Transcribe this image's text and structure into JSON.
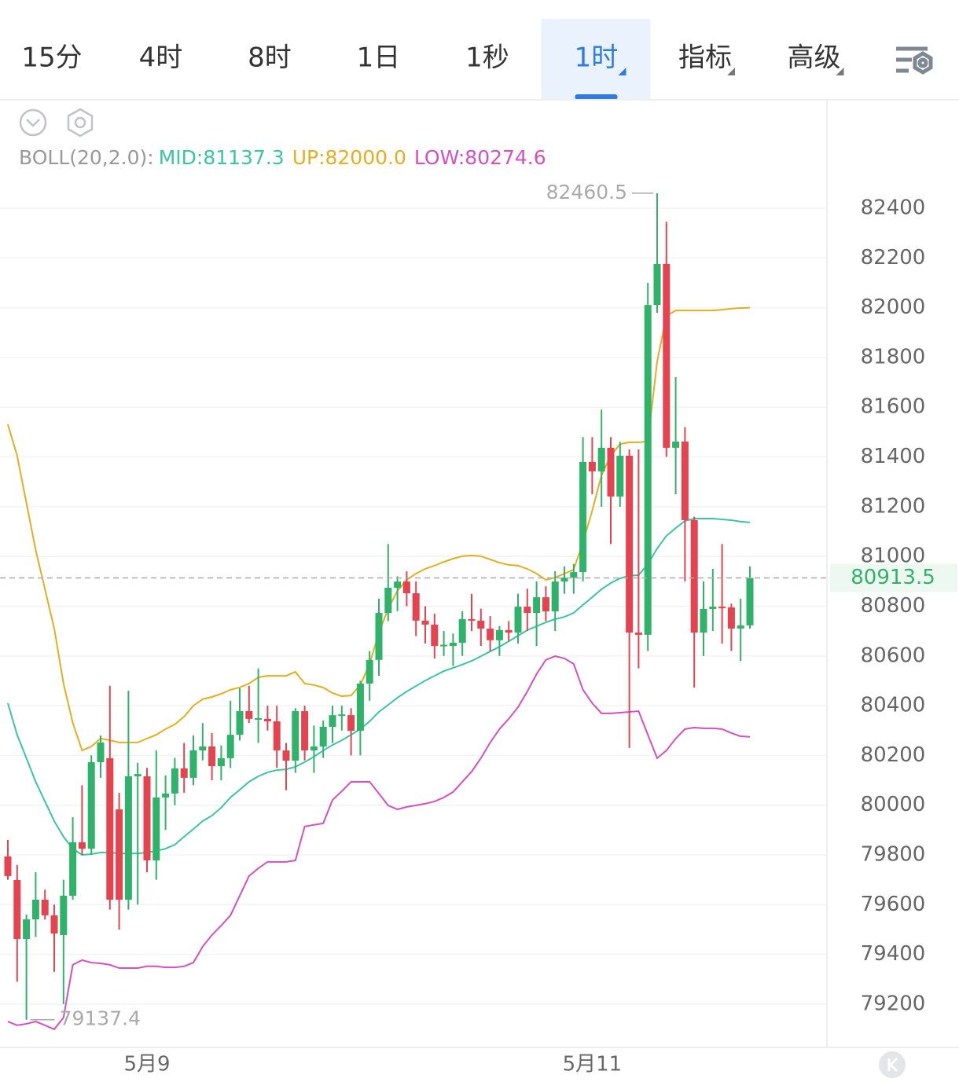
{
  "tabs": [
    {
      "label": "15分"
    },
    {
      "label": "4时"
    },
    {
      "label": "8时"
    },
    {
      "label": "1日"
    },
    {
      "label": "1秒"
    },
    {
      "label": "1时",
      "dropdown": true
    },
    {
      "label": "指标",
      "dropdown": true
    },
    {
      "label": "高级",
      "dropdown": true
    }
  ],
  "active_tab": 5,
  "chart_data": {
    "type": "candlestick",
    "indicator_label": "BOLL(20,2.0):",
    "up_color": "#2fb26a",
    "down_color": "#e5434f",
    "categories": [
      null,
      null,
      null,
      null,
      null,
      null,
      null,
      null,
      null,
      null,
      null,
      null,
      null,
      null,
      null,
      "5月9",
      null,
      null,
      null,
      null,
      null,
      null,
      null,
      null,
      null,
      null,
      null,
      null,
      null,
      null,
      null,
      null,
      null,
      null,
      null,
      null,
      null,
      null,
      null,
      null,
      null,
      null,
      null,
      null,
      null,
      null,
      null,
      null,
      null,
      null,
      null,
      null,
      null,
      null,
      null,
      null,
      null,
      null,
      null,
      null,
      null,
      null,
      null,
      "5月11",
      null,
      null,
      null,
      null,
      null,
      null,
      null,
      null,
      null,
      null,
      null,
      null,
      null,
      null,
      null,
      null,
      null
    ],
    "open": [
      79794,
      79699,
      79462,
      79541,
      79620,
      79557,
      79478,
      79636,
      79851,
      79825,
      80173,
      80189,
      79983,
      79620,
      80116,
      80116,
      79778,
      80031,
      80047,
      80148,
      80110,
      80220,
      80236,
      80157,
      80189,
      80283,
      80378,
      80347,
      80347,
      80337,
      80220,
      80179,
      80378,
      80220,
      80236,
      80315,
      80362,
      80362,
      80299,
      80489,
      80584,
      80773,
      80874,
      80899,
      80852,
      80742,
      80726,
      80640,
      80640,
      80653,
      80748,
      80742,
      80710,
      80663,
      80704,
      80694,
      80798,
      80773,
      80836,
      80779,
      80899,
      80915,
      80937,
      81380,
      81342,
      81437,
      81241,
      81405,
      80694,
      80685,
      82011,
      82176,
      81437,
      81462,
      81146,
      80694,
      80789,
      80798,
      80795,
      80710,
      80723
    ],
    "high": [
      79860,
      79760,
      79560,
      79731,
      79660,
      79600,
      79700,
      79952,
      80080,
      80200,
      80280,
      80480,
      80050,
      80460,
      80170,
      80150,
      80220,
      80120,
      80190,
      80250,
      80280,
      80330,
      80290,
      80240,
      80420,
      80470,
      80480,
      80550,
      80400,
      80400,
      80250,
      80390,
      80400,
      80320,
      80340,
      80400,
      80400,
      80390,
      80500,
      80620,
      80830,
      81050,
      80920,
      80940,
      80900,
      80800,
      80770,
      80700,
      80690,
      80780,
      80850,
      80790,
      80760,
      80720,
      80740,
      80850,
      80870,
      80900,
      80880,
      80940,
      80960,
      80970,
      81480,
      81480,
      81590,
      81480,
      81460,
      81430,
      81430,
      82100,
      82460.5,
      82346,
      81721,
      81520,
      81160,
      80900,
      80950,
      81050,
      80810,
      80830,
      80960
    ],
    "low": [
      79700,
      79290,
      79137.4,
      79470,
      79540,
      79330,
      79200,
      79620,
      79800,
      79800,
      80110,
      79580,
      79500,
      79580,
      79600,
      79730,
      79700,
      79900,
      80000,
      80050,
      80080,
      80180,
      80100,
      80100,
      80150,
      80260,
      80330,
      80250,
      80300,
      80150,
      80060,
      80130,
      80180,
      80130,
      80190,
      80250,
      80300,
      80200,
      80200,
      80420,
      80520,
      80740,
      80780,
      80800,
      80680,
      80650,
      80590,
      80600,
      80560,
      80600,
      80700,
      80640,
      80620,
      80600,
      80660,
      80650,
      80700,
      80640,
      80740,
      80700,
      80850,
      80850,
      80900,
      81250,
      81200,
      81050,
      81200,
      80230,
      80550,
      80620,
      81980,
      81400,
      81250,
      80900,
      80473,
      80600,
      80700,
      80650,
      80620,
      80580,
      80710
    ],
    "close": [
      79715,
      79462,
      79541,
      79620,
      79557,
      79484,
      79636,
      79851,
      79825,
      80173,
      80252,
      79620,
      79620,
      80116,
      80125,
      79778,
      80031,
      80047,
      80148,
      80110,
      80220,
      80236,
      80157,
      80189,
      80283,
      80378,
      80347,
      80350,
      80337,
      80220,
      80179,
      80378,
      80220,
      80236,
      80315,
      80362,
      80365,
      80299,
      80489,
      80584,
      80773,
      80874,
      80899,
      80852,
      80742,
      80726,
      80640,
      80645,
      80653,
      80748,
      80742,
      80710,
      80663,
      80704,
      80694,
      80798,
      80773,
      80836,
      80779,
      80899,
      80915,
      80937,
      81380,
      81342,
      81437,
      81241,
      81405,
      80694,
      80685,
      82011,
      82176,
      81437,
      81462,
      81146,
      80694,
      80789,
      80798,
      80795,
      80710,
      80723,
      80913.5
    ],
    "overlays": [
      {
        "legend": "MID:81137.3",
        "color": "#38c6a3",
        "values": [
          80410,
          80283,
          80189,
          80094,
          80015,
          79936,
          79873,
          79825,
          79800,
          79803,
          79810,
          79810,
          79806,
          79806,
          79806,
          79810,
          79816,
          79825,
          79841,
          79873,
          79904,
          79936,
          79958,
          79990,
          80031,
          80062,
          80094,
          80116,
          80132,
          80141,
          80144,
          80154,
          80173,
          80195,
          80220,
          80242,
          80261,
          80283,
          80306,
          80337,
          80375,
          80403,
          80432,
          80457,
          80479,
          80501,
          80520,
          80539,
          80552,
          80565,
          80580,
          80599,
          80618,
          80637,
          80659,
          80681,
          80704,
          80719,
          80735,
          80748,
          80757,
          80773,
          80805,
          80836,
          80868,
          80893,
          80912,
          80922,
          80925,
          80969,
          81032,
          81083,
          81114,
          81143,
          81152,
          81152,
          81152,
          81149,
          81146,
          81140,
          81137.3
        ]
      },
      {
        "legend": "UP:82000.0",
        "color": "#e6ae1c",
        "values": [
          81531,
          81405,
          81215,
          81026,
          80868,
          80710,
          80489,
          80331,
          80220,
          80236,
          80268,
          80261,
          80252,
          80252,
          80252,
          80268,
          80283,
          80306,
          80325,
          80356,
          80400,
          80426,
          80435,
          80448,
          80464,
          80473,
          80489,
          80514,
          80520,
          80520,
          80520,
          80536,
          80489,
          80483,
          80473,
          80451,
          80438,
          80441,
          80483,
          80568,
          80694,
          80789,
          80862,
          80906,
          80931,
          80950,
          80963,
          80978,
          80991,
          81001,
          81004,
          81001,
          80988,
          80975,
          80966,
          80963,
          80950,
          80931,
          80906,
          80915,
          80931,
          80947,
          81057,
          81184,
          81326,
          81405,
          81452,
          81459,
          81459,
          81462,
          81784,
          81967,
          81989,
          81989,
          81989,
          81989,
          81989,
          81992,
          81996,
          81999,
          82000.0
        ]
      },
      {
        "legend": "LOW:80274.6",
        "color": "#d64fc0",
        "values": [
          79130,
          79115,
          79121,
          79130,
          79115,
          79099,
          79146,
          79358,
          79377,
          79367,
          79364,
          79358,
          79345,
          79345,
          79345,
          79352,
          79352,
          79348,
          79348,
          79352,
          79367,
          79431,
          79478,
          79516,
          79557,
          79636,
          79715,
          79746,
          79772,
          79772,
          79772,
          79778,
          79914,
          79921,
          79927,
          80021,
          80056,
          80094,
          80094,
          80094,
          80047,
          79999,
          79983,
          79993,
          79999,
          80006,
          80015,
          80031,
          80053,
          80094,
          80135,
          80189,
          80252,
          80306,
          80347,
          80394,
          80457,
          80527,
          80584,
          80599,
          80590,
          80568,
          80464,
          80410,
          80369,
          80369,
          80372,
          80375,
          80378,
          80283,
          80189,
          80220,
          80268,
          80306,
          80312,
          80309,
          80309,
          80306,
          80290,
          80277,
          80274.6
        ]
      }
    ],
    "ylim": [
      79026,
      82836
    ],
    "yticks": [
      79200,
      79400,
      79600,
      79800,
      80000,
      80200,
      80400,
      80600,
      80800,
      81000,
      81200,
      81400,
      81600,
      81800,
      82000,
      82200,
      82400
    ],
    "grid": true,
    "high_marker": 82460.5,
    "low_marker": 79137.4,
    "last_price": 80913.5
  }
}
